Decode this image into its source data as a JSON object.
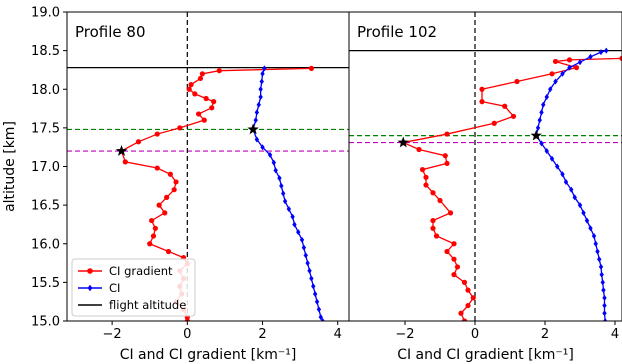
{
  "chart_data": [
    {
      "type": "line",
      "title": "Profile 80",
      "xlabel": "CI and CI gradient [km⁻¹]",
      "ylabel": "altitude [km]",
      "xlim": [
        -3.2,
        4.3
      ],
      "ylim": [
        15.0,
        19.0
      ],
      "xticks": [
        -2,
        0,
        2,
        4
      ],
      "xtick_labels": [
        "−2",
        "0",
        "2",
        "4"
      ],
      "yticks": [
        15.0,
        15.5,
        16.0,
        16.5,
        17.0,
        17.5,
        18.0,
        18.5,
        19.0
      ],
      "ytick_labels": [
        "15.0",
        "15.5",
        "16.0",
        "16.5",
        "17.0",
        "17.5",
        "18.0",
        "18.5",
        "19.0"
      ],
      "grid": false,
      "flight_altitude": 18.28,
      "green_line": 17.48,
      "magenta_line": 17.2,
      "stars": [
        {
          "x": 1.75,
          "y": 17.48
        },
        {
          "x": -1.75,
          "y": 17.2
        }
      ],
      "series": [
        {
          "name": "CI gradient",
          "color": "#ff0000",
          "points": [
            [
              3.3,
              18.27
            ],
            [
              0.85,
              18.24
            ],
            [
              0.4,
              18.2
            ],
            [
              0.35,
              18.14
            ],
            [
              0.1,
              18.06
            ],
            [
              0.05,
              18.0
            ],
            [
              0.2,
              17.94
            ],
            [
              0.5,
              17.88
            ],
            [
              0.7,
              17.84
            ],
            [
              0.65,
              17.76
            ],
            [
              0.3,
              17.68
            ],
            [
              0.45,
              17.6
            ],
            [
              -0.2,
              17.5
            ],
            [
              -0.8,
              17.42
            ],
            [
              -1.3,
              17.32
            ],
            [
              -1.75,
              17.2
            ],
            [
              -1.65,
              17.06
            ],
            [
              -0.8,
              16.98
            ],
            [
              -0.45,
              16.9
            ],
            [
              -0.3,
              16.8
            ],
            [
              -0.35,
              16.7
            ],
            [
              -0.55,
              16.6
            ],
            [
              -0.75,
              16.5
            ],
            [
              -0.6,
              16.4
            ],
            [
              -0.95,
              16.3
            ],
            [
              -0.85,
              16.2
            ],
            [
              -0.9,
              16.1
            ],
            [
              -1.0,
              16.0
            ],
            [
              -0.5,
              15.9
            ],
            [
              -0.1,
              15.82
            ],
            [
              0.0,
              15.74
            ],
            [
              -0.2,
              15.65
            ],
            [
              -0.1,
              15.55
            ],
            [
              -0.2,
              15.45
            ],
            [
              -0.15,
              15.35
            ],
            [
              -0.3,
              15.25
            ],
            [
              -0.1,
              15.15
            ],
            [
              0.0,
              15.05
            ],
            [
              0.0,
              15.0
            ]
          ]
        },
        {
          "name": "CI",
          "color": "#0000ff",
          "points": [
            [
              2.05,
              18.27
            ],
            [
              2.0,
              18.2
            ],
            [
              1.98,
              18.1
            ],
            [
              1.95,
              18.0
            ],
            [
              1.95,
              17.9
            ],
            [
              1.9,
              17.8
            ],
            [
              1.85,
              17.7
            ],
            [
              1.82,
              17.6
            ],
            [
              1.75,
              17.48
            ],
            [
              1.85,
              17.35
            ],
            [
              2.0,
              17.25
            ],
            [
              2.2,
              17.15
            ],
            [
              2.3,
              17.05
            ],
            [
              2.35,
              16.95
            ],
            [
              2.45,
              16.85
            ],
            [
              2.5,
              16.75
            ],
            [
              2.55,
              16.65
            ],
            [
              2.6,
              16.55
            ],
            [
              2.7,
              16.45
            ],
            [
              2.8,
              16.35
            ],
            [
              2.85,
              16.25
            ],
            [
              2.95,
              16.15
            ],
            [
              3.05,
              16.05
            ],
            [
              3.1,
              15.95
            ],
            [
              3.15,
              15.85
            ],
            [
              3.2,
              15.75
            ],
            [
              3.25,
              15.65
            ],
            [
              3.3,
              15.55
            ],
            [
              3.35,
              15.45
            ],
            [
              3.4,
              15.35
            ],
            [
              3.45,
              15.25
            ],
            [
              3.5,
              15.15
            ],
            [
              3.55,
              15.05
            ],
            [
              3.6,
              15.0
            ]
          ]
        }
      ],
      "legend": {
        "placement": "lower-left",
        "entries": [
          {
            "label": "CI gradient",
            "color": "#ff0000",
            "marker": "circle"
          },
          {
            "label": "CI",
            "color": "#0000ff",
            "marker": "diamond"
          },
          {
            "label": "flight altitude",
            "color": "#000000",
            "marker": "none"
          }
        ]
      }
    },
    {
      "type": "line",
      "title": "Profile 102",
      "xlabel": "CI and CI gradient [km⁻¹]",
      "xlim": [
        -3.6,
        4.2
      ],
      "ylim": [
        15.0,
        19.0
      ],
      "xticks": [
        -2,
        0,
        2,
        4
      ],
      "xtick_labels": [
        "−2",
        "0",
        "2",
        "4"
      ],
      "grid": false,
      "flight_altitude": 18.5,
      "green_line": 17.4,
      "magenta_line": 17.31,
      "stars": [
        {
          "x": 1.75,
          "y": 17.4
        },
        {
          "x": -2.05,
          "y": 17.31
        }
      ],
      "series": [
        {
          "name": "CI gradient",
          "color": "#ff0000",
          "points": [
            [
              4.2,
              18.4
            ],
            [
              2.7,
              18.38
            ],
            [
              2.3,
              18.36
            ],
            [
              2.9,
              18.28
            ],
            [
              2.2,
              18.2
            ],
            [
              1.2,
              18.1
            ],
            [
              0.2,
              18.0
            ],
            [
              0.2,
              17.84
            ],
            [
              0.85,
              17.78
            ],
            [
              1.1,
              17.65
            ],
            [
              0.55,
              17.56
            ],
            [
              -0.8,
              17.42
            ],
            [
              -2.05,
              17.31
            ],
            [
              -1.6,
              17.22
            ],
            [
              -0.85,
              17.14
            ],
            [
              -0.8,
              17.04
            ],
            [
              -1.5,
              16.96
            ],
            [
              -1.4,
              16.86
            ],
            [
              -1.4,
              16.76
            ],
            [
              -1.2,
              16.66
            ],
            [
              -1.0,
              16.56
            ],
            [
              -0.7,
              16.4
            ],
            [
              -1.2,
              16.3
            ],
            [
              -1.2,
              16.2
            ],
            [
              -1.1,
              16.1
            ],
            [
              -0.6,
              16.0
            ],
            [
              -0.8,
              15.9
            ],
            [
              -0.6,
              15.8
            ],
            [
              -0.5,
              15.7
            ],
            [
              -0.6,
              15.6
            ],
            [
              -0.3,
              15.5
            ],
            [
              -0.2,
              15.4
            ],
            [
              -0.05,
              15.3
            ],
            [
              -0.2,
              15.2
            ],
            [
              -0.4,
              15.1
            ],
            [
              -0.3,
              15.0
            ]
          ]
        },
        {
          "name": "CI",
          "color": "#0000ff",
          "points": [
            [
              3.75,
              18.5
            ],
            [
              3.6,
              18.48
            ],
            [
              3.3,
              18.42
            ],
            [
              3.0,
              18.35
            ],
            [
              2.7,
              18.28
            ],
            [
              2.5,
              18.2
            ],
            [
              2.3,
              18.1
            ],
            [
              2.15,
              18.0
            ],
            [
              2.05,
              17.9
            ],
            [
              1.95,
              17.8
            ],
            [
              1.9,
              17.7
            ],
            [
              1.85,
              17.6
            ],
            [
              1.8,
              17.5
            ],
            [
              1.75,
              17.4
            ],
            [
              1.9,
              17.3
            ],
            [
              2.05,
              17.2
            ],
            [
              2.2,
              17.1
            ],
            [
              2.35,
              17.0
            ],
            [
              2.5,
              16.9
            ],
            [
              2.6,
              16.8
            ],
            [
              2.75,
              16.7
            ],
            [
              2.85,
              16.6
            ],
            [
              3.0,
              16.5
            ],
            [
              3.1,
              16.4
            ],
            [
              3.2,
              16.3
            ],
            [
              3.3,
              16.2
            ],
            [
              3.4,
              16.1
            ],
            [
              3.45,
              16.0
            ],
            [
              3.5,
              15.9
            ],
            [
              3.55,
              15.8
            ],
            [
              3.6,
              15.7
            ],
            [
              3.62,
              15.6
            ],
            [
              3.65,
              15.5
            ],
            [
              3.67,
              15.4
            ],
            [
              3.7,
              15.3
            ],
            [
              3.7,
              15.2
            ],
            [
              3.7,
              15.1
            ],
            [
              3.72,
              15.0
            ]
          ]
        }
      ]
    }
  ]
}
